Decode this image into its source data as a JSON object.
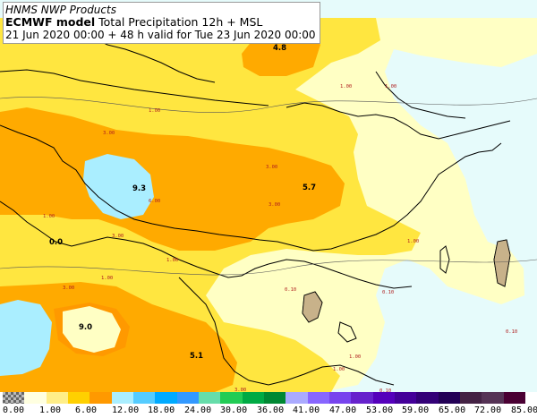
{
  "header": {
    "line1": "HNMS NWP Products",
    "model": "ECMWF model",
    "product": "Total Precipitation 12h + MSL",
    "line3": "21 Jun 2020 00:00 + 48 h valid for Tue 23 Jun 2020 00:00"
  },
  "map": {
    "sea_color": "#e6fbfb",
    "land_outline_color": "#000000",
    "isobar_color": "#555555",
    "precip_maxima": [
      {
        "label": "4.8"
      },
      {
        "label": "9.3"
      },
      {
        "label": "5.7"
      },
      {
        "label": "9.0"
      },
      {
        "label": "5.1"
      },
      {
        "label": "0.0"
      }
    ],
    "isoline_labels": [
      "1.00",
      "3.00",
      "3.00",
      "3.00",
      "1.00",
      "1.00",
      "1.00",
      "3.00",
      "6.00",
      "1.00",
      "3.00",
      "1.00",
      "1.00",
      "0.10",
      "0.10",
      "0.10",
      "1.00",
      "1.00",
      "0.10",
      "3.00"
    ]
  },
  "legend": {
    "colors": [
      "#888888",
      "#ffffe0",
      "#ffee88",
      "#ffd000",
      "#ff9900",
      "#aaeeff",
      "#55ccff",
      "#00aaff",
      "#3399ff",
      "#66ddaa",
      "#22cc55",
      "#00aa44",
      "#008833",
      "#aaaaff",
      "#8866ff",
      "#7744ee",
      "#6622cc",
      "#5500bb",
      "#440099",
      "#330077",
      "#220055",
      "#442244",
      "#553355",
      "#4a0033"
    ],
    "ticks": [
      "0.00",
      "1.00",
      "6.00",
      "12.00",
      "18.00",
      "24.00",
      "30.00",
      "36.00",
      "41.00",
      "47.00",
      "53.00",
      "59.00",
      "65.00",
      "72.00",
      "85.00"
    ]
  }
}
